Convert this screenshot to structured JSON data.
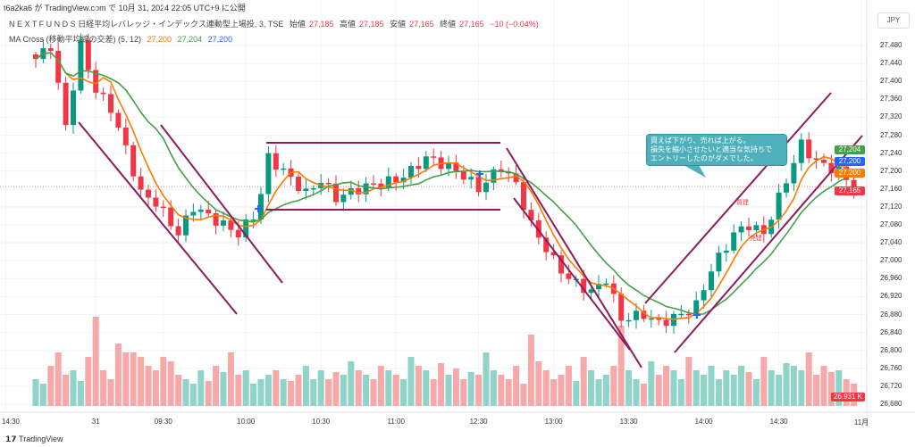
{
  "publish_line": "t6a2ka6 が TradingView.com で 10月 31, 2024 22:05 UTC+9 に公開",
  "symbol": {
    "name": "N E X T   F U N D S   日経平均レバレッジ・インデックス連動型上場投, 3, TSE",
    "open_label": "始値",
    "open": "27,185",
    "high_label": "高値",
    "high": "27,185",
    "low_label": "安値",
    "low": "27,165",
    "close_label": "終値",
    "close": "27,165",
    "change": "−10 (−0.04%)"
  },
  "indicator": {
    "name": "MA Cross (移動平均線の交差) (5, 12)",
    "v1": "27,200",
    "v2": "27,204",
    "v3": "27,200"
  },
  "currency": "JPY",
  "badges": {
    "ma_long": "27,204",
    "cross": "27,200",
    "ma_short": "27,200",
    "last": "27,165",
    "volume": "26.931 K"
  },
  "colors": {
    "up": "#089981",
    "down": "#f23645",
    "ma_short": "#ff7a00",
    "ma_long": "#43a047",
    "cross": "#2962ff",
    "trendline": "#8e1b5a",
    "vol_up": "#8fd3c9",
    "vol_down": "#f7a9a9"
  },
  "annotation": {
    "line1": "買えば下がり、売れば上がる。",
    "line2": "損失を縮小させたいと適当な気持ちで",
    "line3": "エントリーしたのがダメでした。"
  },
  "tags": {
    "buy": "買建",
    "sell": "売建"
  },
  "footer": "TradingView",
  "chart_data": {
    "type": "candlestick",
    "price_ticks": [
      "27,480",
      "27,440",
      "27,400",
      "27,360",
      "27,320",
      "27,280",
      "27,240",
      "27,200",
      "27,160",
      "27,120",
      "27,080",
      "27,040",
      "27,000",
      "26,960",
      "26,920",
      "26,880",
      "26,840",
      "26,800",
      "26,760",
      "26,720",
      "26,680"
    ],
    "ylim": [
      26680,
      27480
    ],
    "time_ticks": [
      {
        "label": "14:30",
        "bar": -4
      },
      {
        "label": "31",
        "bar": 8
      },
      {
        "label": "09:30",
        "bar": 17
      },
      {
        "label": "10:00",
        "bar": 28
      },
      {
        "label": "10:30",
        "bar": 38
      },
      {
        "label": "11:00",
        "bar": 48
      },
      {
        "label": "12:30",
        "bar": 59
      },
      {
        "label": "13:00",
        "bar": 69
      },
      {
        "label": "13:30",
        "bar": 79
      },
      {
        "label": "14:00",
        "bar": 89
      },
      {
        "label": "14:30",
        "bar": 99
      },
      {
        "label": "11月",
        "bar": 110
      }
    ],
    "close_keypoints": [
      [
        0,
        27450
      ],
      [
        2,
        27480
      ],
      [
        4,
        27300
      ],
      [
        6,
        27480
      ],
      [
        8,
        27380
      ],
      [
        10,
        27340
      ],
      [
        12,
        27250
      ],
      [
        14,
        27150
      ],
      [
        16,
        27130
      ],
      [
        19,
        27060
      ],
      [
        21,
        27120
      ],
      [
        23,
        27100
      ],
      [
        25,
        27080
      ],
      [
        27,
        27060
      ],
      [
        29,
        27100
      ],
      [
        30,
        27150
      ],
      [
        31,
        27230
      ],
      [
        33,
        27200
      ],
      [
        36,
        27150
      ],
      [
        38,
        27180
      ],
      [
        40,
        27140
      ],
      [
        43,
        27160
      ],
      [
        45,
        27170
      ],
      [
        48,
        27180
      ],
      [
        50,
        27200
      ],
      [
        52,
        27230
      ],
      [
        55,
        27210
      ],
      [
        57,
        27190
      ],
      [
        59,
        27160
      ],
      [
        62,
        27210
      ],
      [
        64,
        27170
      ],
      [
        66,
        27080
      ],
      [
        69,
        27000
      ],
      [
        71,
        26960
      ],
      [
        74,
        26930
      ],
      [
        76,
        26960
      ],
      [
        78,
        26870
      ],
      [
        81,
        26880
      ],
      [
        83,
        26860
      ],
      [
        86,
        26880
      ],
      [
        88,
        26900
      ],
      [
        90,
        26980
      ],
      [
        93,
        27060
      ],
      [
        95,
        27080
      ],
      [
        97,
        27060
      ],
      [
        100,
        27180
      ],
      [
        102,
        27260
      ],
      [
        104,
        27220
      ],
      [
        107,
        27200
      ],
      [
        109,
        27165
      ]
    ],
    "volumes": [
      30,
      25,
      45,
      60,
      35,
      40,
      28,
      55,
      100,
      40,
      30,
      70,
      60,
      60,
      55,
      45,
      40,
      55,
      50,
      35,
      30,
      25,
      40,
      28,
      45,
      38,
      60,
      35,
      40,
      25,
      30,
      35,
      40,
      30,
      28,
      35,
      45,
      30,
      40,
      30,
      38,
      35,
      50,
      40,
      35,
      30,
      45,
      40,
      35,
      30,
      55,
      45,
      40,
      30,
      48,
      35,
      42,
      30,
      38,
      35,
      60,
      40,
      35,
      30,
      45,
      25,
      80,
      50,
      40,
      30,
      35,
      45,
      28,
      55,
      40,
      30,
      35,
      45,
      90,
      40,
      30,
      25,
      50,
      35,
      45,
      40,
      30,
      55,
      40,
      35,
      45,
      30,
      40,
      35,
      45,
      38,
      30,
      55,
      40,
      35,
      48,
      45,
      40,
      60,
      35,
      45,
      38,
      40,
      30,
      25
    ]
  }
}
